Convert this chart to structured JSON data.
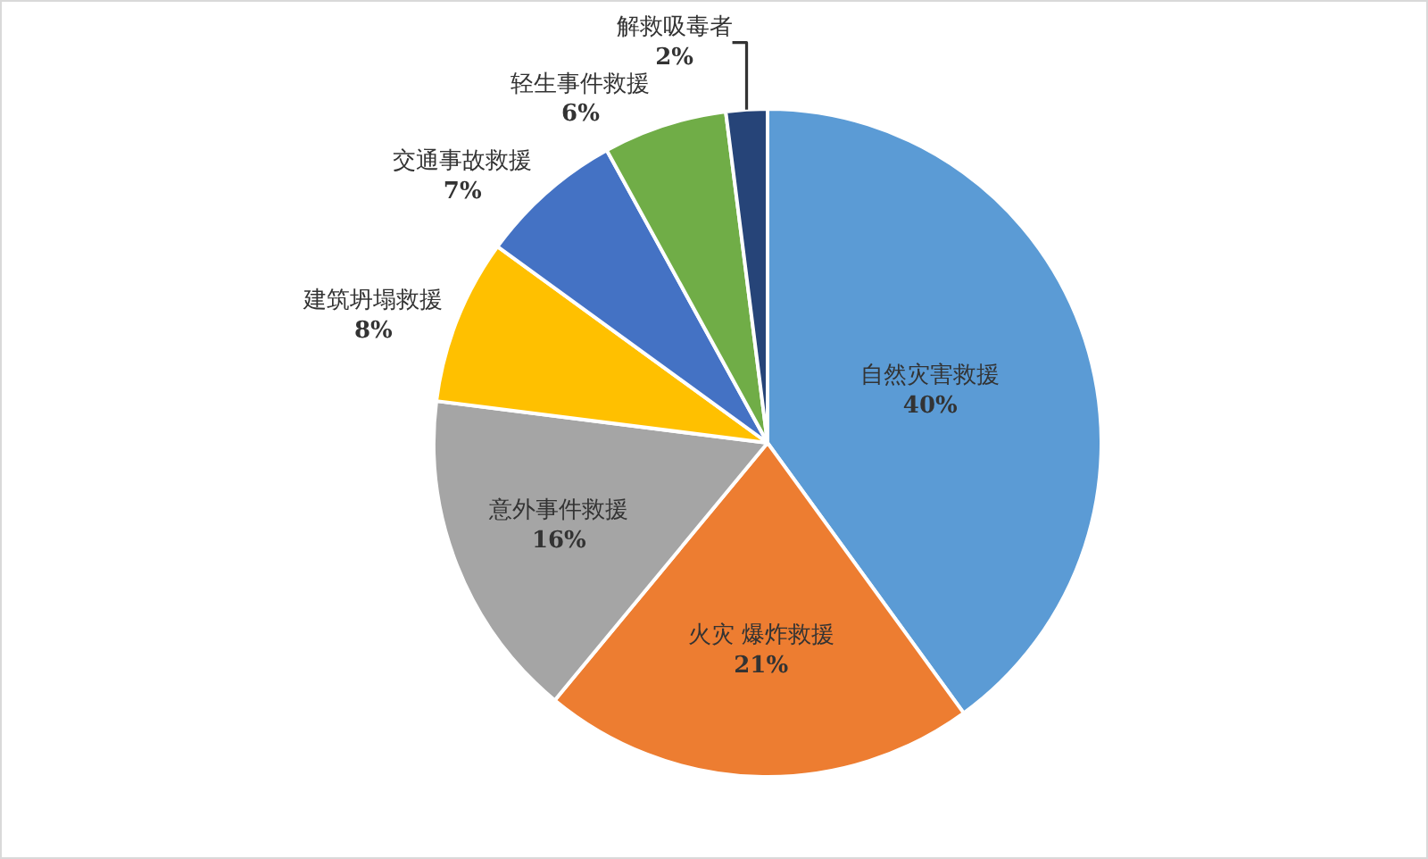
{
  "chart_data": {
    "type": "pie",
    "categories": [
      "自然灾害救援",
      "火灾 爆炸救援",
      "意外事件救援",
      "建筑坍塌救援",
      "交通事故救援",
      "轻生事件救援",
      "解救吸毒者"
    ],
    "values": [
      40,
      21,
      16,
      8,
      7,
      6,
      2
    ],
    "value_labels": [
      "40%",
      "21%",
      "16%",
      "8%",
      "7%",
      "6%",
      "2%"
    ],
    "colors": [
      "#5b9bd5",
      "#ed7d31",
      "#a5a5a5",
      "#ffc000",
      "#4472c4",
      "#70ad47",
      "#264478"
    ],
    "legend": false
  }
}
